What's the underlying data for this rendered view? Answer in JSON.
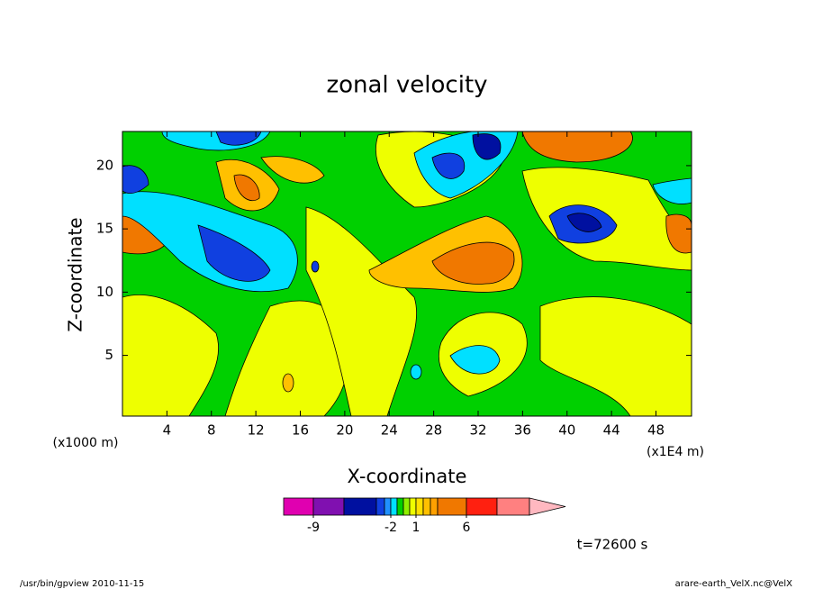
{
  "chart_data": {
    "type": "contour",
    "title": "zonal velocity",
    "x_label": "X-coordinate",
    "y_label": "Z-coordinate",
    "x_unit": "(x1000 m)",
    "x_unit_right": "(x1E4 m)",
    "xlim": [
      0,
      51.2
    ],
    "xticks": [
      4,
      8,
      12,
      16,
      20,
      24,
      28,
      32,
      36,
      40,
      44,
      48
    ],
    "ylim": [
      0.2,
      22.7
    ],
    "yticks": [
      5,
      10,
      15,
      20
    ],
    "colorbar": {
      "colors": [
        "#e000b0",
        "#8010b0",
        "#0010a0",
        "#1040e0",
        "#2090ff",
        "#00e0ff",
        "#00d000",
        "#90f000",
        "#eeff00",
        "#ffe000",
        "#ffc000",
        "#ffa000",
        "#f07800",
        "#ff2010",
        "#ff8080",
        "#ffb8c0"
      ],
      "ticks": [
        -9,
        -2,
        1,
        6
      ]
    },
    "time_label": "t=72600 s",
    "footer_left": "/usr/bin/gpview  2010-11-15",
    "footer_right": "arare-earth_VelX.nc@VelX"
  }
}
